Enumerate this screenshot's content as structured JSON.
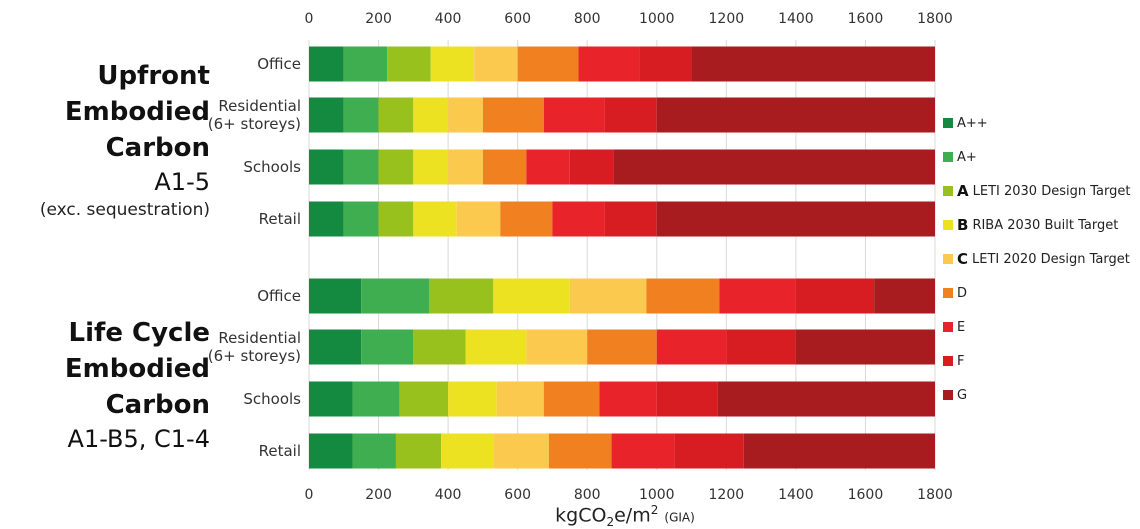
{
  "chart_data": {
    "type": "bar",
    "orientation": "horizontal",
    "stacked": true,
    "xlim": [
      0,
      1800
    ],
    "xticks": [
      "0",
      "200",
      "400",
      "600",
      "800",
      "1000",
      "1200",
      "1400",
      "1600",
      "1800"
    ],
    "xlabel": {
      "main": "kgCO",
      "sub": "2",
      "mid": "e/m",
      "sup": "2",
      "unit": "(GIA)"
    },
    "grid": true,
    "legend_position": "right",
    "bands": [
      {
        "key": "App",
        "label": "A++",
        "color": "#138a3f"
      },
      {
        "key": "Ap",
        "label": "A+",
        "color": "#3fae50"
      },
      {
        "key": "A",
        "letter": "A",
        "label": "LETI 2030 Design Target",
        "color": "#98c11d"
      },
      {
        "key": "B",
        "letter": "B",
        "label": "RIBA 2030 Built Target",
        "color": "#ece221"
      },
      {
        "key": "C",
        "letter": "C",
        "label": "LETI 2020 Design Target",
        "color": "#fbc94e"
      },
      {
        "key": "D",
        "label": "D",
        "color": "#f18120"
      },
      {
        "key": "E",
        "label": "E",
        "color": "#e9232a"
      },
      {
        "key": "F",
        "label": "F",
        "color": "#d81d22"
      },
      {
        "key": "G",
        "label": "G",
        "color": "#a81b1f"
      }
    ],
    "groups": [
      {
        "title": {
          "line1": "Upfront",
          "line2": "Embodied",
          "line3": "Carbon",
          "line4": "A1-5",
          "line5": "(exc. sequestration)"
        },
        "rows": [
          {
            "label": [
              "Office"
            ],
            "bounds": [
              0,
              100,
              225,
              350,
              475,
              600,
              775,
              950,
              1100,
              1800
            ]
          },
          {
            "label": [
              "Residential",
              "(6+ storeys)"
            ],
            "bounds": [
              0,
              100,
              200,
              300,
              400,
              500,
              675,
              850,
              1000,
              1800
            ]
          },
          {
            "label": [
              "Schools"
            ],
            "bounds": [
              0,
              100,
              200,
              300,
              400,
              500,
              625,
              750,
              875,
              1800
            ]
          },
          {
            "label": [
              "Retail"
            ],
            "bounds": [
              0,
              100,
              200,
              300,
              425,
              550,
              700,
              850,
              1000,
              1800
            ]
          }
        ]
      },
      {
        "title": {
          "line1": "Life Cycle",
          "line2": "Embodied",
          "line3": "Carbon",
          "line4": "A1-B5, C1-4"
        },
        "rows": [
          {
            "label": [
              "Office"
            ],
            "bounds": [
              0,
              150,
              345,
              530,
              750,
              970,
              1180,
              1400,
              1625,
              1800
            ]
          },
          {
            "label": [
              "Residential",
              "(6+ storeys)"
            ],
            "bounds": [
              0,
              150,
              300,
              450,
              625,
              800,
              1000,
              1200,
              1400,
              1800
            ]
          },
          {
            "label": [
              "Schools"
            ],
            "bounds": [
              0,
              125,
              260,
              400,
              540,
              675,
              835,
              1000,
              1175,
              1800
            ]
          },
          {
            "label": [
              "Retail"
            ],
            "bounds": [
              0,
              125,
              250,
              380,
              530,
              690,
              870,
              1050,
              1250,
              1800
            ]
          }
        ]
      }
    ]
  }
}
